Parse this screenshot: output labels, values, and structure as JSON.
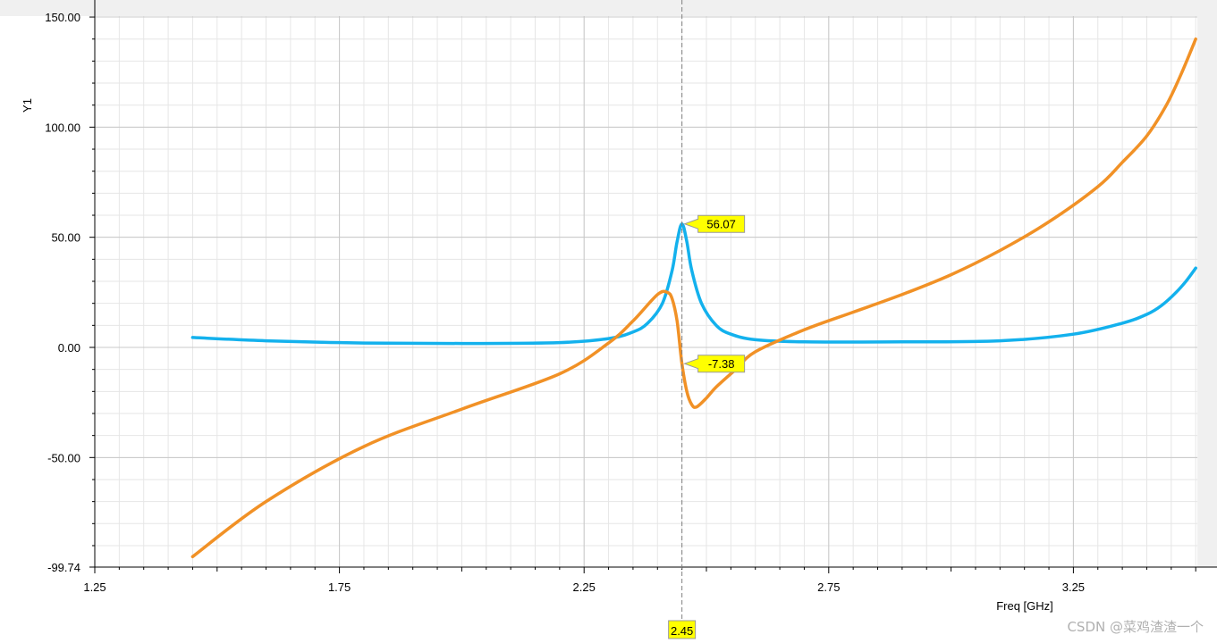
{
  "chart_data": {
    "type": "line",
    "xlabel": "Freq [GHz]",
    "ylabel": "Y1",
    "xlim": [
      1.25,
      3.55
    ],
    "ylim": [
      -99.74,
      150.0
    ],
    "x_ticks": [
      1.25,
      1.75,
      2.25,
      2.75,
      3.25
    ],
    "x_tick_labels": [
      "1.25",
      "1.75",
      "2.25",
      "2.75",
      "3.25"
    ],
    "y_ticks": [
      150.0,
      100.0,
      50.0,
      0.0,
      -50.0,
      -99.74
    ],
    "y_tick_labels": [
      "150.00",
      "100.00",
      "50.00",
      "0.00",
      "-50.00",
      "-99.74"
    ],
    "grid": true,
    "series": [
      {
        "color": "#13b1ed",
        "x": [
          1.45,
          1.6,
          1.8,
          2.0,
          2.2,
          2.3,
          2.35,
          2.38,
          2.41,
          2.43,
          2.44,
          2.45,
          2.46,
          2.47,
          2.49,
          2.52,
          2.55,
          2.6,
          2.7,
          2.9,
          3.1,
          3.25,
          3.35,
          3.4,
          3.43,
          3.46,
          3.48,
          3.5
        ],
        "y": [
          4.5,
          3.0,
          2.0,
          1.8,
          2.2,
          4.0,
          7.0,
          11.0,
          20.0,
          35.0,
          48.0,
          56.07,
          48.0,
          35.0,
          20.0,
          10.0,
          6.0,
          3.5,
          2.5,
          2.5,
          3.0,
          6.0,
          11.0,
          15.0,
          19.0,
          25.0,
          30.0,
          36.0
        ]
      },
      {
        "color": "#f19126",
        "x": [
          1.45,
          1.6,
          1.8,
          2.0,
          2.2,
          2.3,
          2.35,
          2.4,
          2.42,
          2.43,
          2.44,
          2.45,
          2.46,
          2.47,
          2.48,
          2.5,
          2.52,
          2.56,
          2.6,
          2.7,
          2.8,
          2.9,
          3.0,
          3.1,
          3.2,
          3.3,
          3.35,
          3.4,
          3.44,
          3.47,
          3.5
        ],
        "y": [
          -95.0,
          -70.0,
          -45.0,
          -28.0,
          -12.0,
          2.0,
          12.0,
          24.0,
          25.0,
          22.0,
          12.0,
          -7.38,
          -20.0,
          -26.0,
          -27.0,
          -23.0,
          -18.0,
          -10.0,
          -2.0,
          8.0,
          16.0,
          24.0,
          33.0,
          44.0,
          57.0,
          73.0,
          84.0,
          96.0,
          110.0,
          124.0,
          140.0
        ]
      }
    ],
    "marker": {
      "x": 2.45,
      "x_label": "2.45",
      "points": [
        {
          "y": 56.07,
          "label": "56.07"
        },
        {
          "y": -7.38,
          "label": "-7.38"
        }
      ]
    }
  },
  "watermark": "CSDN @菜鸡渣渣一个",
  "colors": {
    "plot_background": "#ffffff",
    "right_margin_band": "#f0f0f0",
    "major_grid": "#c8c8c8",
    "minor_grid": "#e6e6e6",
    "marker_fill": "#ffff00",
    "marker_line": "#808080"
  }
}
